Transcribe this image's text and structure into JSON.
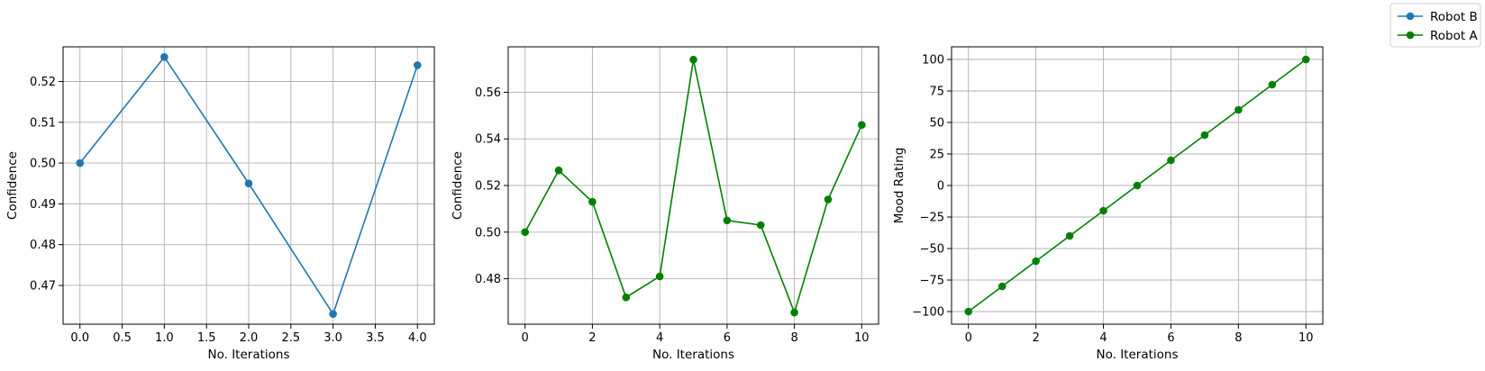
{
  "legend": {
    "placement": "top-right",
    "entries": [
      {
        "label": "Robot B",
        "color": "#1f77b4"
      },
      {
        "label": "Robot A",
        "color": "#008000"
      }
    ]
  },
  "chart_data": [
    {
      "type": "line",
      "title": "",
      "xlabel": "No. Iterations",
      "ylabel": "Confidence",
      "grid": true,
      "xlim": [
        -0.2,
        4.2
      ],
      "ylim": [
        0.4605,
        0.5285
      ],
      "xticks": [
        0.0,
        0.5,
        1.0,
        1.5,
        2.0,
        2.5,
        3.0,
        3.5,
        4.0
      ],
      "xtick_labels": [
        "0.0",
        "0.5",
        "1.0",
        "1.5",
        "2.0",
        "2.5",
        "3.0",
        "3.5",
        "4.0"
      ],
      "yticks": [
        0.47,
        0.48,
        0.49,
        0.5,
        0.51,
        0.52
      ],
      "ytick_labels": [
        "0.47",
        "0.48",
        "0.49",
        "0.50",
        "0.51",
        "0.52"
      ],
      "series": [
        {
          "legend_label": "Robot B",
          "color": "#1f77b4",
          "marker": "circle",
          "x": [
            0,
            1,
            2,
            3,
            4
          ],
          "y": [
            0.5,
            0.526,
            0.495,
            0.463,
            0.524
          ]
        }
      ]
    },
    {
      "type": "line",
      "title": "",
      "xlabel": "No. Iterations",
      "ylabel": "Confidence",
      "grid": true,
      "xlim": [
        -0.5,
        10.5
      ],
      "ylim": [
        0.4605,
        0.5795
      ],
      "xticks": [
        0,
        2,
        4,
        6,
        8,
        10
      ],
      "xtick_labels": [
        "0",
        "2",
        "4",
        "6",
        "8",
        "10"
      ],
      "yticks": [
        0.48,
        0.5,
        0.52,
        0.54,
        0.56
      ],
      "ytick_labels": [
        "0.48",
        "0.50",
        "0.52",
        "0.54",
        "0.56"
      ],
      "series": [
        {
          "legend_label": "Robot A",
          "color": "#008000",
          "marker": "circle",
          "x": [
            0,
            1,
            2,
            3,
            4,
            5,
            6,
            7,
            8,
            9,
            10
          ],
          "y": [
            0.5,
            0.5265,
            0.513,
            0.472,
            0.481,
            0.574,
            0.505,
            0.503,
            0.4655,
            0.514,
            0.546
          ]
        }
      ]
    },
    {
      "type": "line",
      "title": "",
      "xlabel": "No. Iterations",
      "ylabel": "Mood Rating",
      "grid": true,
      "xlim": [
        -0.5,
        10.5
      ],
      "ylim": [
        -110,
        110
      ],
      "xticks": [
        0,
        2,
        4,
        6,
        8,
        10
      ],
      "xtick_labels": [
        "0",
        "2",
        "4",
        "6",
        "8",
        "10"
      ],
      "yticks": [
        -100,
        -75,
        -50,
        -25,
        0,
        25,
        50,
        75,
        100
      ],
      "ytick_labels": [
        "−100",
        "−75",
        "−50",
        "−25",
        "0",
        "25",
        "50",
        "75",
        "100"
      ],
      "series": [
        {
          "legend_label": "Robot A",
          "color": "#008000",
          "marker": "circle",
          "x": [
            0,
            1,
            2,
            3,
            4,
            5,
            6,
            7,
            8,
            9,
            10
          ],
          "y": [
            -100,
            -80,
            -60,
            -40,
            -20,
            0,
            20,
            40,
            60,
            80,
            100
          ]
        }
      ]
    }
  ]
}
